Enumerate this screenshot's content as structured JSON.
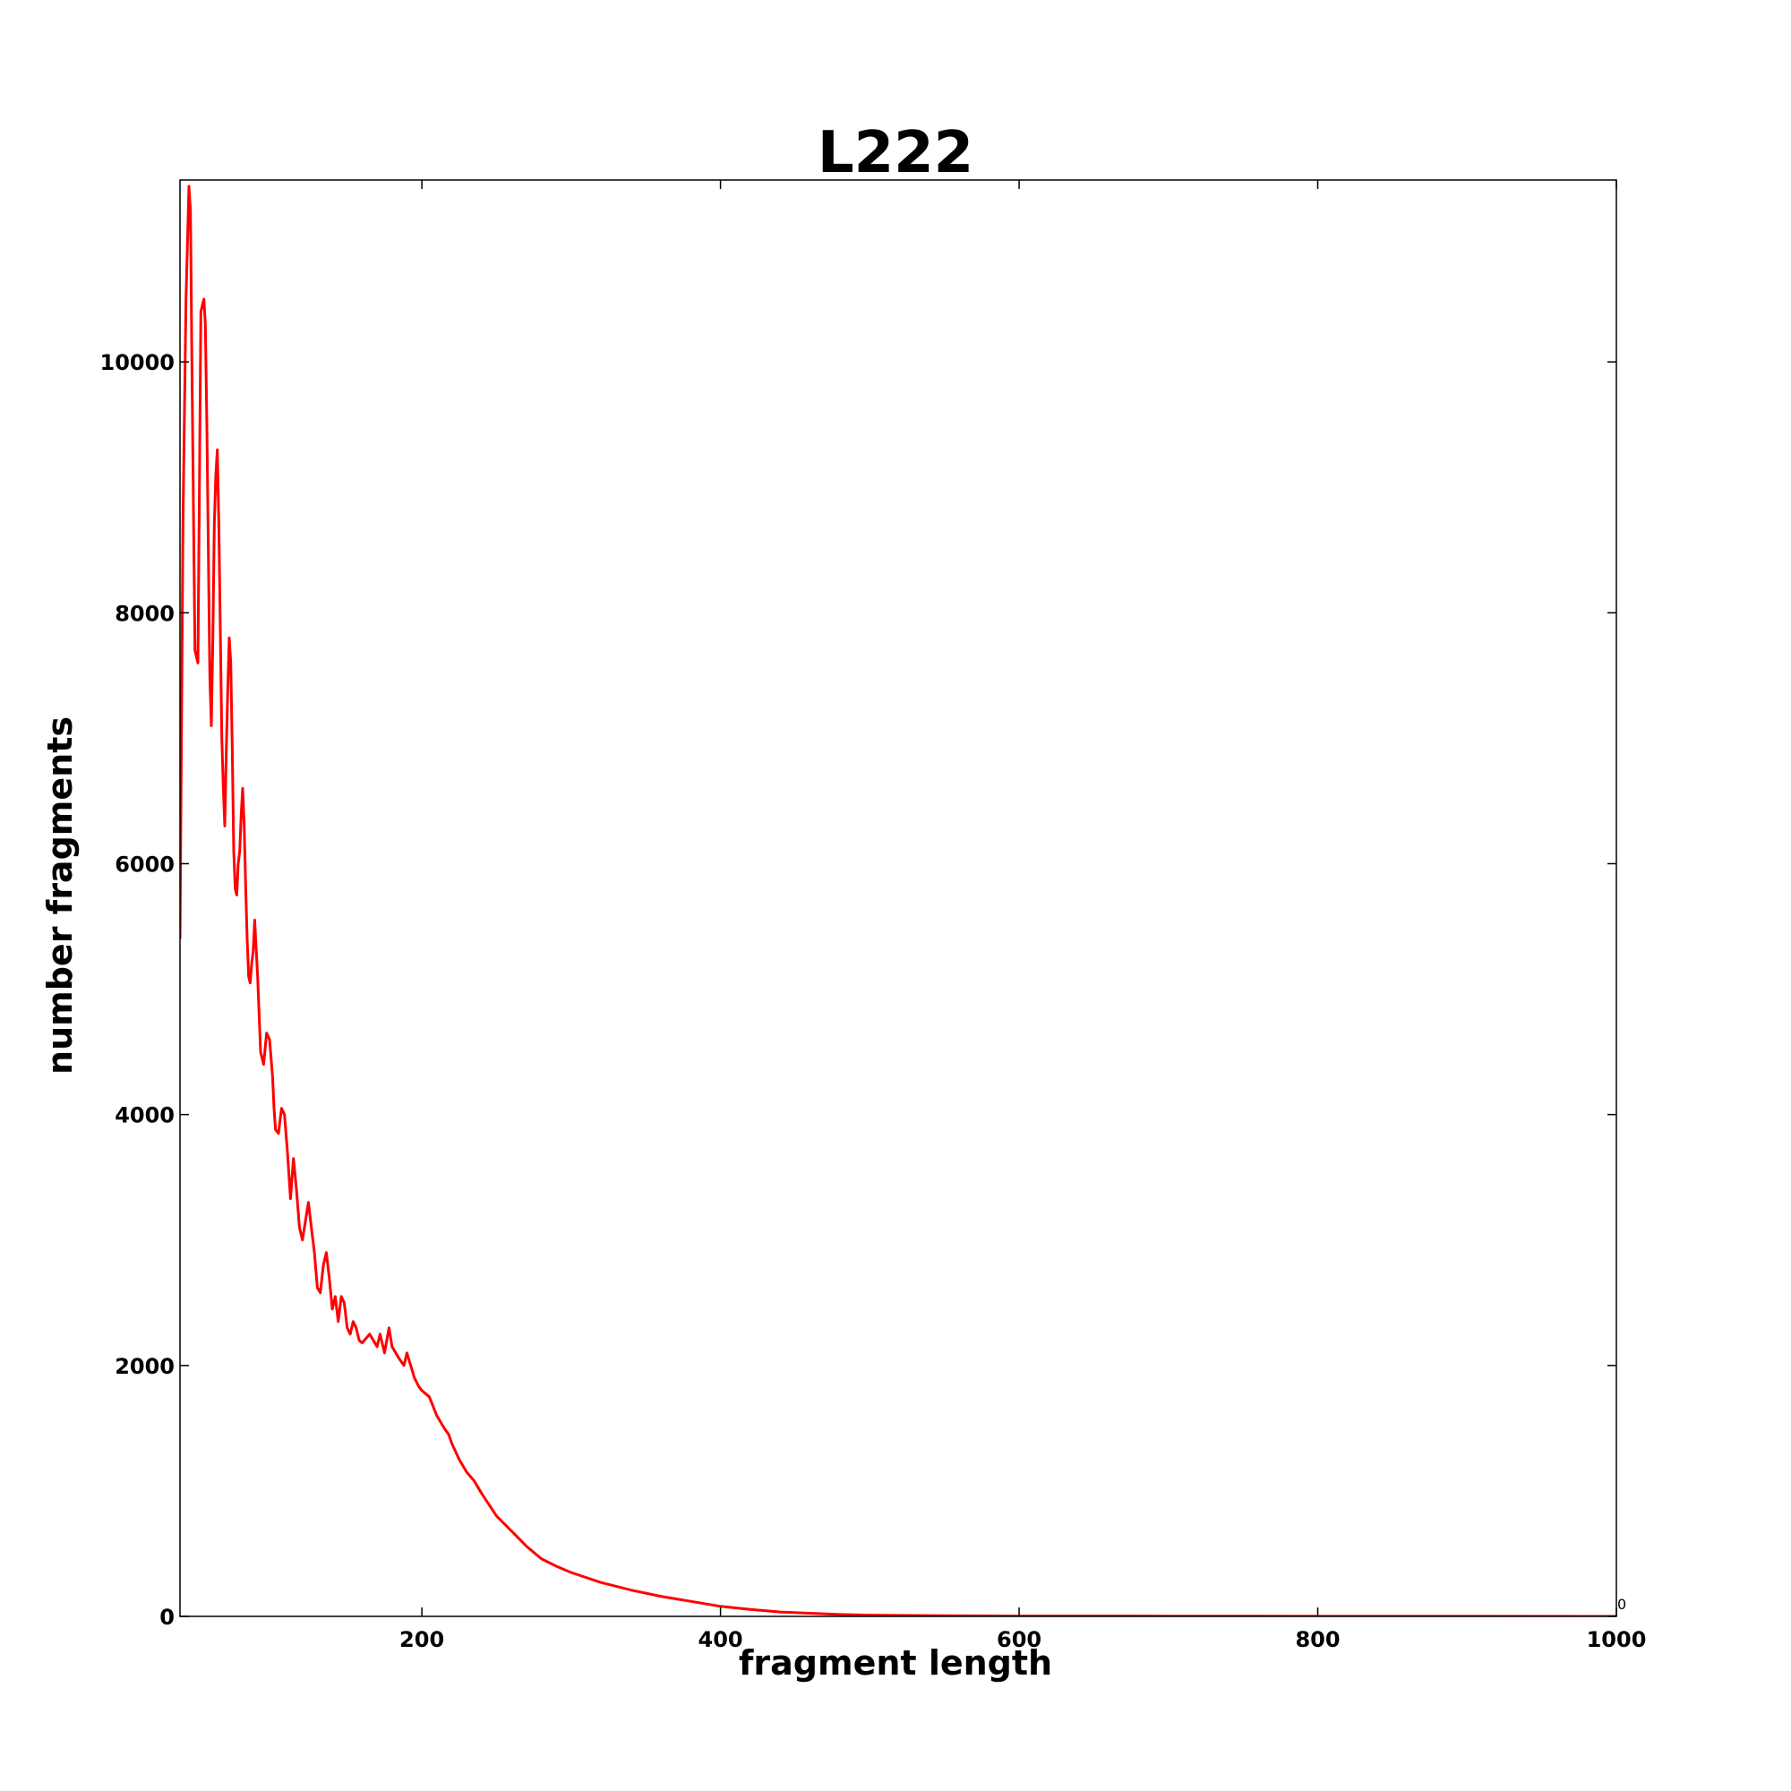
{
  "chart_data": {
    "type": "line",
    "title": "L222",
    "xlabel": "fragment length",
    "ylabel": "number fragments",
    "xlim": [
      38,
      1000
    ],
    "ylim": [
      0,
      11450
    ],
    "xticks": [
      200,
      400,
      600,
      800,
      1000
    ],
    "yticks": [
      0,
      2000,
      4000,
      6000,
      8000,
      10000
    ],
    "corner_label": "0",
    "grid": false,
    "legend": "none",
    "line_color": "#ff0000",
    "series": [
      {
        "x": [
          38,
          40,
          42,
          44,
          45,
          46,
          48,
          50,
          51,
          52,
          54,
          55,
          56,
          58,
          59,
          60,
          61,
          62,
          63,
          64,
          66,
          67,
          68,
          69,
          70,
          71,
          72,
          73,
          74,
          75,
          76,
          77,
          78,
          79,
          80,
          81,
          82,
          83,
          84,
          85,
          86,
          87,
          88,
          90,
          92,
          93,
          94,
          96,
          98,
          100,
          101,
          102,
          104,
          106,
          108,
          110,
          112,
          114,
          116,
          118,
          120,
          122,
          124,
          126,
          128,
          130,
          132,
          134,
          136,
          138,
          140,
          142,
          144,
          146,
          148,
          150,
          152,
          154,
          156,
          158,
          160,
          165,
          170,
          172,
          175,
          178,
          180,
          185,
          188,
          190,
          195,
          198,
          200,
          205,
          210,
          215,
          218,
          220,
          225,
          230,
          235,
          240,
          250,
          260,
          270,
          280,
          290,
          300,
          320,
          340,
          360,
          380,
          400,
          420,
          440,
          460,
          480,
          500,
          550,
          600,
          700,
          800,
          900,
          1000
        ],
        "values": [
          5400,
          8700,
          10500,
          11400,
          11200,
          10000,
          7700,
          7600,
          9000,
          10400,
          10500,
          10300,
          9500,
          7500,
          7100,
          7800,
          8700,
          9100,
          9300,
          8700,
          7000,
          6600,
          6300,
          6900,
          7400,
          7800,
          7600,
          6900,
          6100,
          5800,
          5750,
          6000,
          6100,
          6400,
          6600,
          6300,
          5800,
          5400,
          5100,
          5050,
          5200,
          5300,
          5550,
          5100,
          4500,
          4450,
          4400,
          4650,
          4600,
          4300,
          4050,
          3880,
          3850,
          4050,
          4000,
          3700,
          3330,
          3650,
          3400,
          3100,
          3000,
          3150,
          3300,
          3100,
          2900,
          2620,
          2580,
          2800,
          2900,
          2700,
          2450,
          2550,
          2350,
          2550,
          2500,
          2300,
          2250,
          2350,
          2300,
          2200,
          2180,
          2250,
          2150,
          2250,
          2100,
          2300,
          2150,
          2050,
          2000,
          2100,
          1900,
          1830,
          1800,
          1750,
          1600,
          1500,
          1450,
          1380,
          1250,
          1150,
          1080,
          980,
          800,
          680,
          560,
          460,
          400,
          350,
          270,
          210,
          160,
          120,
          80,
          55,
          35,
          25,
          15,
          10,
          5,
          3,
          2,
          1,
          1,
          0
        ]
      }
    ]
  }
}
